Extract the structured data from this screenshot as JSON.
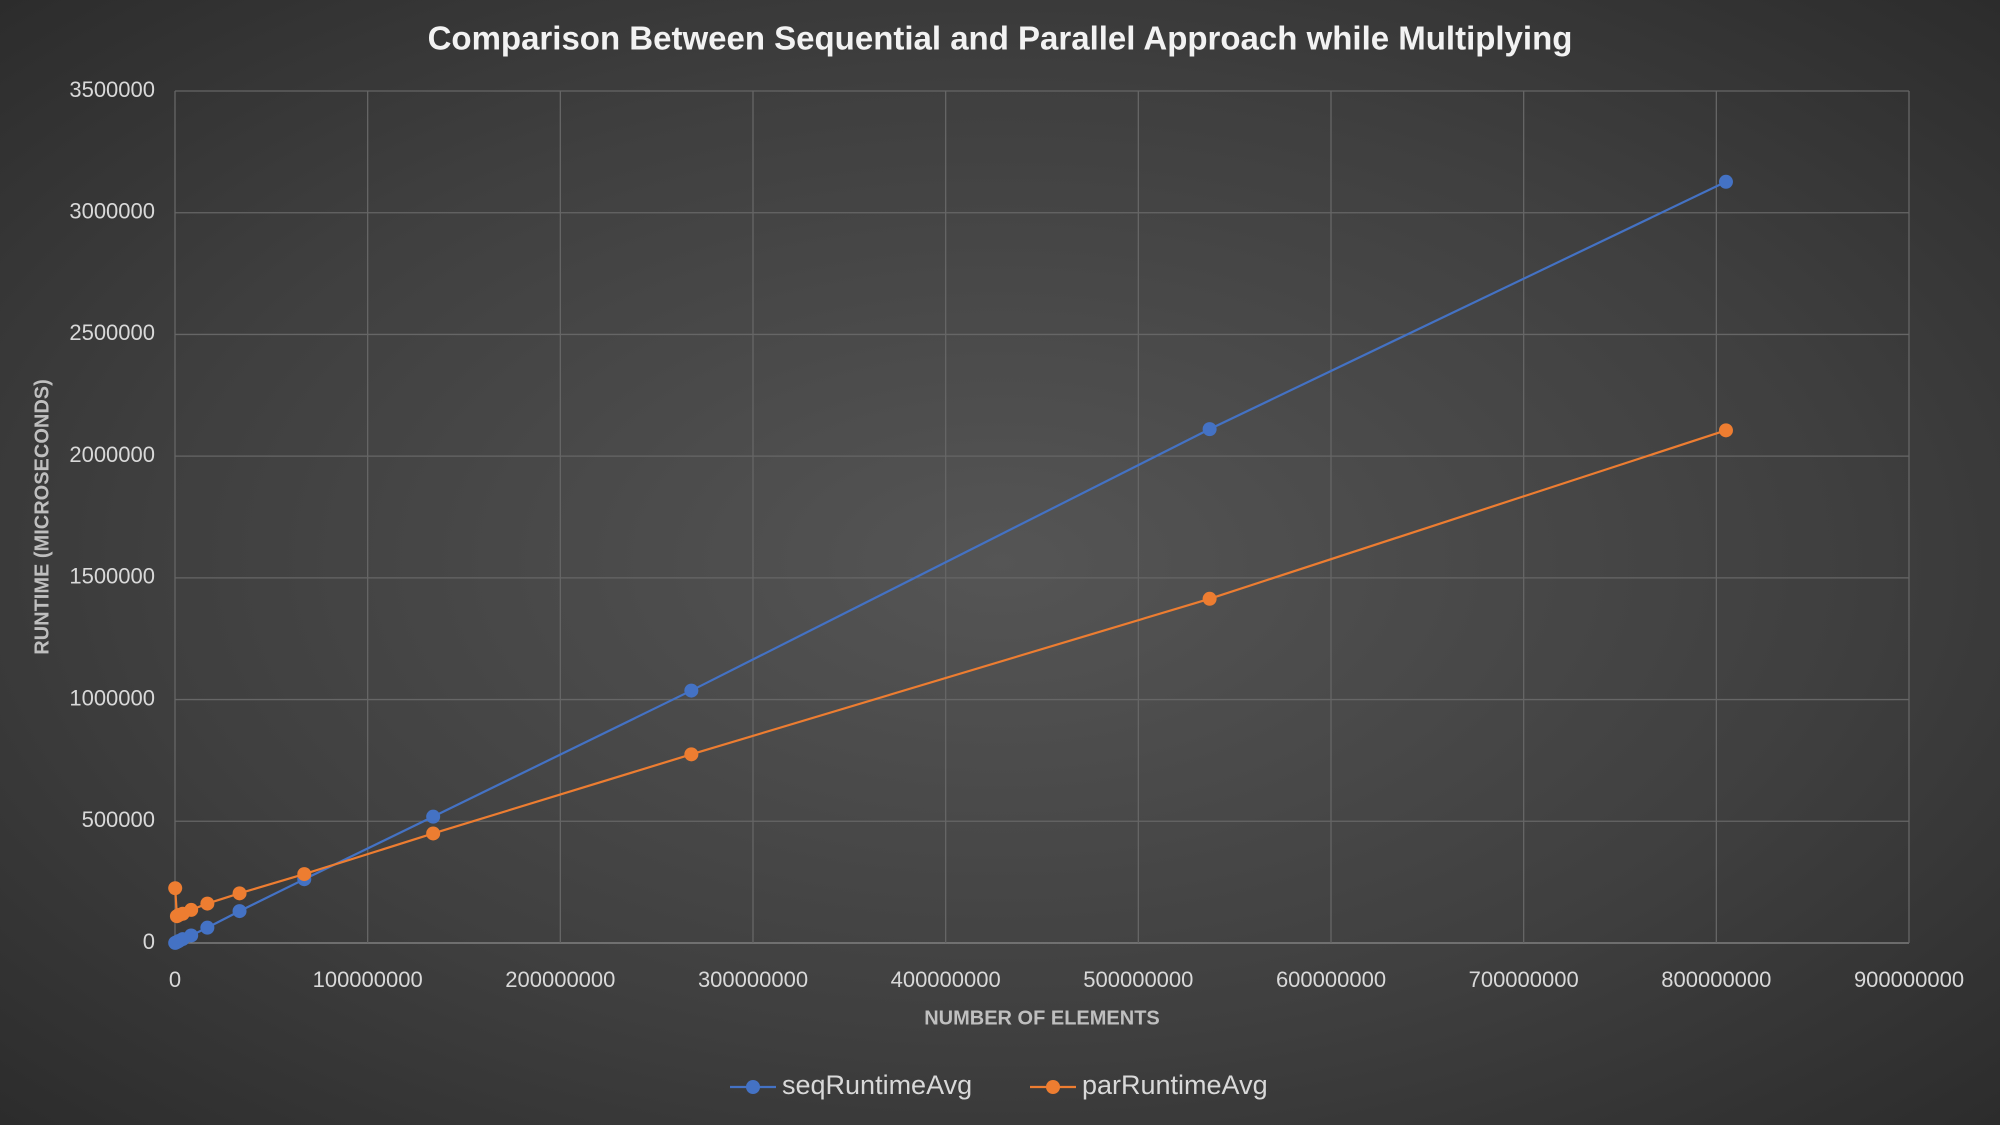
{
  "chart_data": {
    "type": "line",
    "title": "Comparison Between Sequential and Parallel Approach while Multiplying",
    "x_label": "NUMBER OF ELEMENTS",
    "y_label": "RUNTIME (MICROSECONDS)",
    "x": [
      100000,
      1000000,
      2000000,
      4000000,
      8400000,
      16800000,
      33500000,
      67100000,
      134000000,
      268000000,
      537000000,
      805000000
    ],
    "series": [
      {
        "name": "seqRuntimeAvg",
        "color": "#4472c4",
        "values": [
          500,
          4000,
          8000,
          16000,
          31000,
          63000,
          131000,
          262000,
          519000,
          1037000,
          2111000,
          3127000
        ]
      },
      {
        "name": "parRuntimeAvg",
        "color": "#ed7d31",
        "values": [
          225000,
          110000,
          115000,
          120000,
          136000,
          162000,
          204000,
          283000,
          450000,
          775000,
          1414000,
          2106000
        ]
      }
    ],
    "xlim": [
      0,
      900000000
    ],
    "xticks": [
      0,
      100000000,
      200000000,
      300000000,
      400000000,
      500000000,
      600000000,
      700000000,
      800000000,
      900000000
    ],
    "ylim": [
      0,
      3500000
    ],
    "yticks": [
      0,
      500000,
      1000000,
      1500000,
      2000000,
      2500000,
      3000000,
      3500000
    ],
    "grid": true,
    "legend": "bottom"
  }
}
